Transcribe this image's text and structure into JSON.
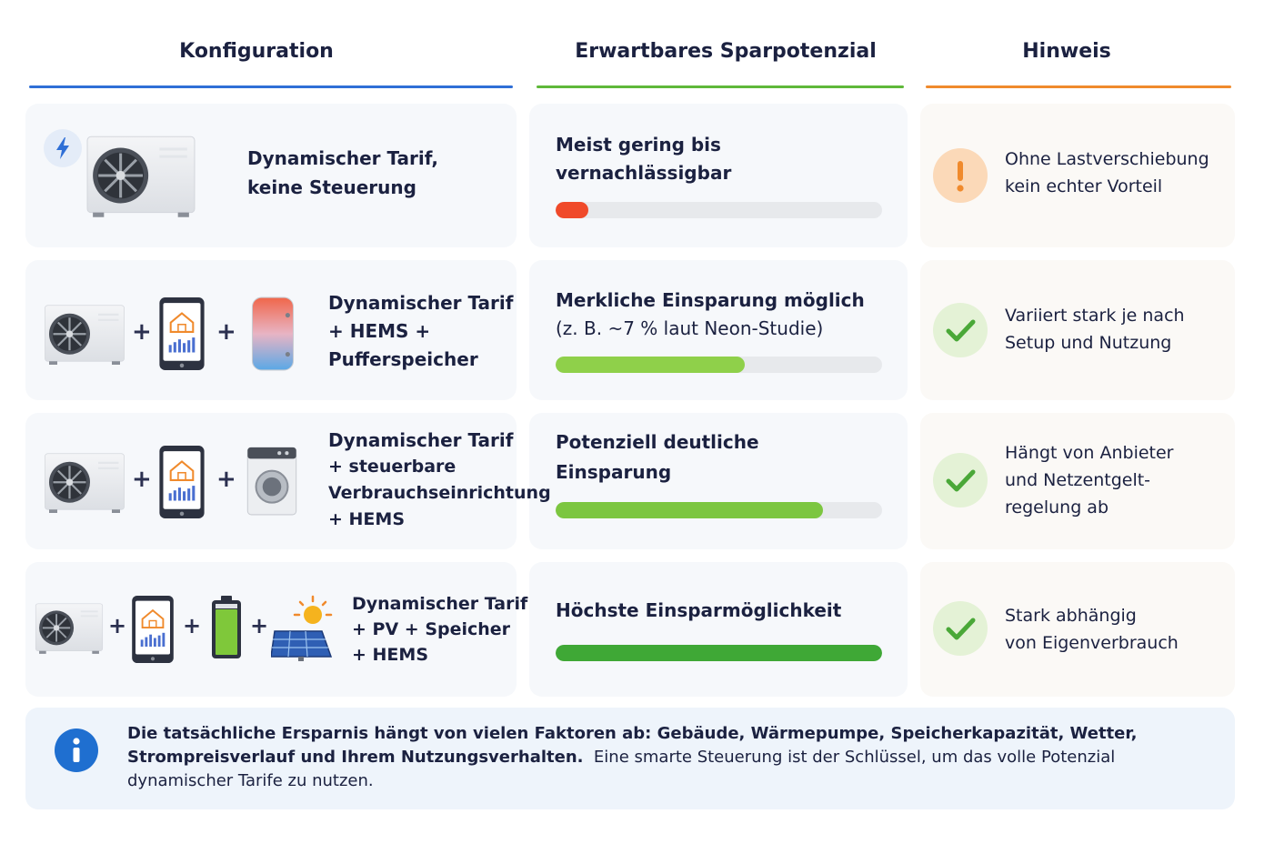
{
  "headers": {
    "config": "Konfiguration",
    "savings": "Erwartbares Sparpotenzial",
    "note": "Hinweis"
  },
  "colors": {
    "config_line": "#2f6fd6",
    "savings_line": "#5fb83a",
    "note_line": "#f08a2c",
    "bar_red": "#f04a2a",
    "bar_green_light": "#8fd04a",
    "bar_green_dark": "#3fa836",
    "warning": "#f08a2c",
    "check": "#4aa838",
    "info": "#1f6fd0"
  },
  "rows": [
    {
      "config_line1": "Dynamischer Tarif,",
      "config_line2": "keine Steuerung",
      "icons": [
        "lightning-icon",
        "heat-pump-icon"
      ],
      "savings_title1": "Meist gering bis",
      "savings_title2": "vernachlässigbar",
      "level": 0.1,
      "status_icon": "warning-icon",
      "note_line1": "Ohne Lastverschiebung",
      "note_line2": "kein echter Vorteil"
    },
    {
      "config_line1": "Dynamischer Tarif",
      "config_line2": "+ HEMS +",
      "config_line3": "Pufferspeicher",
      "icons": [
        "heat-pump-icon",
        "hems-tablet-icon",
        "buffer-tank-icon"
      ],
      "plus": "+",
      "savings_title1": "Merkliche Einsparung möglich",
      "savings_sub": "(z. B. ~7 % laut Neon-Studie)",
      "level": 0.58,
      "status_icon": "check-icon",
      "note_line1": "Variiert stark je nach",
      "note_line2": "Setup und Nutzung"
    },
    {
      "config_line1": "Dynamischer Tarif",
      "config_line2": "+ steuerbare",
      "config_line3": "Verbrauchseinrichtung",
      "config_line4": "+ HEMS",
      "icons": [
        "heat-pump-icon",
        "hems-tablet-icon",
        "washing-machine-icon"
      ],
      "plus": "+",
      "savings_title1": "Potenziell deutliche",
      "savings_title2": "Einsparung",
      "level": 0.82,
      "status_icon": "check-icon",
      "note_line1": "Hängt von Anbieter",
      "note_line2": "und Netzentgelt-",
      "note_line3": "regelung ab"
    },
    {
      "config_line1": "Dynamischer Tarif",
      "config_line2": "+ PV + Speicher",
      "config_line3": "+ HEMS",
      "icons": [
        "heat-pump-icon",
        "hems-tablet-icon",
        "battery-icon",
        "solar-panel-icon"
      ],
      "plus": "+",
      "savings_title1": "Höchste Einsparmöglichkeit",
      "level": 1.0,
      "status_icon": "check-icon",
      "note_line1": "Stark abhängig",
      "note_line2": "von Eigenverbrauch"
    }
  ],
  "info": {
    "icon": "info-icon",
    "bold": "Die tatsächliche Ersparnis hängt von vielen Faktoren ab: Gebäude, Wärmepumpe, Speicherkapazität, Wetter, Strompreisverlauf und Ihrem Nutzungsverhalten.",
    "normal": "Eine smarte Steuerung ist der Schlüssel, um das volle Potenzial dynamischer Tarife zu nutzen."
  }
}
